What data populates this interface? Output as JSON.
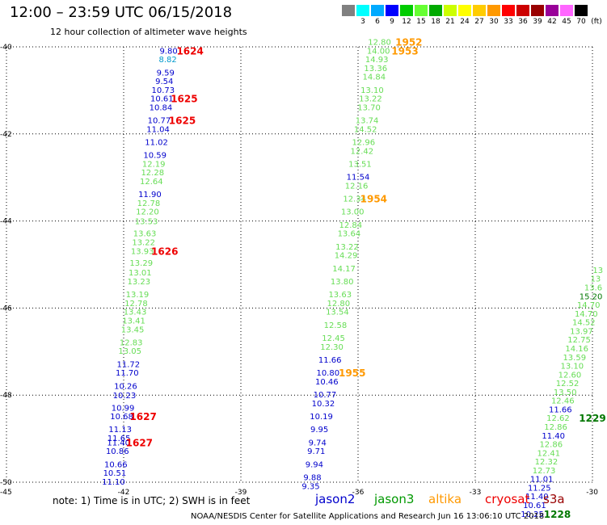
{
  "header": {
    "title": "12:00 – 23:59 UTC 06/15/2018",
    "subtitle": "12 hour collection of altimeter wave heights"
  },
  "colorbar": {
    "unit_label": "(ft)",
    "entries": [
      {
        "label": "",
        "color": "#808080"
      },
      {
        "label": "3",
        "color": "#00ffff"
      },
      {
        "label": "6",
        "color": "#00aaff"
      },
      {
        "label": "9",
        "color": "#0000ff"
      },
      {
        "label": "12",
        "color": "#00cc00"
      },
      {
        "label": "15",
        "color": "#66ff33"
      },
      {
        "label": "18",
        "color": "#00aa00"
      },
      {
        "label": "21",
        "color": "#ccff00"
      },
      {
        "label": "24",
        "color": "#ffff00"
      },
      {
        "label": "27",
        "color": "#ffcc00"
      },
      {
        "label": "30",
        "color": "#ff9900"
      },
      {
        "label": "33",
        "color": "#ff0000"
      },
      {
        "label": "36",
        "color": "#cc0000"
      },
      {
        "label": "39",
        "color": "#990000"
      },
      {
        "label": "42",
        "color": "#990099"
      },
      {
        "label": "45",
        "color": "#ff66ff"
      },
      {
        "label": "70",
        "color": "#000000"
      }
    ]
  },
  "axes": {
    "lon_ticks": [
      "-45",
      "-42",
      "-39",
      "-36",
      "-33",
      "-30"
    ],
    "lat_ticks": [
      "-40",
      "-42",
      "-44",
      "-46",
      "-48",
      "-50"
    ]
  },
  "footer": {
    "note": "note: 1) Time is in UTC; 2) SWH is in feet",
    "credit": "NOAA/NESDIS Center for Satellite Applications and Research   Jun 16 13:06:10 UTC 2018",
    "satellites": [
      {
        "name": "jason2",
        "color": "#0000cc"
      },
      {
        "name": "jason3",
        "color": "#009900"
      },
      {
        "name": "altika",
        "color": "#ff9900"
      },
      {
        "name": "cryosat",
        "color": "#ee0000"
      },
      {
        "name": "s3a",
        "color": "#990000"
      }
    ]
  },
  "colors": {
    "jason2": "#0000cc",
    "light_green": "#66dd55",
    "cyan": "#0099cc",
    "time_red": "#ee0000",
    "time_orange": "#ff9900",
    "time_green": "#007700"
  },
  "tracks": [
    {
      "name": "track-1",
      "readings": [
        {
          "value": "9.80",
          "lat": -40.08,
          "lon": -40.85,
          "c": "jason2"
        },
        {
          "value": "8.82",
          "lat": -40.28,
          "lon": -40.87,
          "c": "cyan"
        },
        {
          "value": "9.59",
          "lat": -40.58,
          "lon": -40.93,
          "c": "jason2"
        },
        {
          "value": "9.54",
          "lat": -40.78,
          "lon": -40.96,
          "c": "jason2"
        },
        {
          "value": "10.73",
          "lat": -40.98,
          "lon": -40.99,
          "c": "jason2"
        },
        {
          "value": "10.61",
          "lat": -41.18,
          "lon": -41.02,
          "c": "jason2"
        },
        {
          "value": "10.84",
          "lat": -41.38,
          "lon": -41.05,
          "c": "jason2"
        },
        {
          "value": "10.77",
          "lat": -41.68,
          "lon": -41.09,
          "c": "jason2"
        },
        {
          "value": "11.04",
          "lat": -41.88,
          "lon": -41.12,
          "c": "jason2"
        },
        {
          "value": "11.02",
          "lat": -42.18,
          "lon": -41.16,
          "c": "jason2"
        },
        {
          "value": "10.59",
          "lat": -42.48,
          "lon": -41.2,
          "c": "jason2"
        },
        {
          "value": "12.19",
          "lat": -42.68,
          "lon": -41.23,
          "c": "light_green"
        },
        {
          "value": "12.28",
          "lat": -42.88,
          "lon": -41.26,
          "c": "light_green"
        },
        {
          "value": "12.64",
          "lat": -43.08,
          "lon": -41.29,
          "c": "light_green"
        },
        {
          "value": "11.90",
          "lat": -43.38,
          "lon": -41.33,
          "c": "jason2"
        },
        {
          "value": "12.78",
          "lat": -43.58,
          "lon": -41.36,
          "c": "light_green"
        },
        {
          "value": "12.20",
          "lat": -43.78,
          "lon": -41.39,
          "c": "light_green"
        },
        {
          "value": "13.53",
          "lat": -44.0,
          "lon": -41.42,
          "c": "light_green"
        },
        {
          "value": "13.63",
          "lat": -44.28,
          "lon": -41.46,
          "c": "light_green"
        },
        {
          "value": "13.22",
          "lat": -44.48,
          "lon": -41.49,
          "c": "light_green"
        },
        {
          "value": "13.93",
          "lat": -44.68,
          "lon": -41.52,
          "c": "light_green"
        },
        {
          "value": "13.29",
          "lat": -44.95,
          "lon": -41.55,
          "c": "light_green"
        },
        {
          "value": "13.01",
          "lat": -45.18,
          "lon": -41.58,
          "c": "light_green"
        },
        {
          "value": "13.23",
          "lat": -45.38,
          "lon": -41.61,
          "c": "light_green"
        },
        {
          "value": "13.19",
          "lat": -45.68,
          "lon": -41.65,
          "c": "light_green"
        },
        {
          "value": "12.78",
          "lat": -45.88,
          "lon": -41.68,
          "c": "light_green"
        },
        {
          "value": "13.43",
          "lat": -46.08,
          "lon": -41.71,
          "c": "light_green"
        },
        {
          "value": "13.41",
          "lat": -46.28,
          "lon": -41.74,
          "c": "light_green"
        },
        {
          "value": "13.45",
          "lat": -46.48,
          "lon": -41.77,
          "c": "light_green"
        },
        {
          "value": "12.83",
          "lat": -46.78,
          "lon": -41.81,
          "c": "light_green"
        },
        {
          "value": "13.05",
          "lat": -46.98,
          "lon": -41.84,
          "c": "light_green"
        },
        {
          "value": "11.72",
          "lat": -47.28,
          "lon": -41.88,
          "c": "jason2"
        },
        {
          "value": "11.70",
          "lat": -47.48,
          "lon": -41.91,
          "c": "jason2"
        },
        {
          "value": "10.26",
          "lat": -47.78,
          "lon": -41.95,
          "c": "jason2"
        },
        {
          "value": "10.23",
          "lat": -48.0,
          "lon": -41.98,
          "c": "jason2"
        },
        {
          "value": "10.99",
          "lat": -48.28,
          "lon": -42.02,
          "c": "jason2"
        },
        {
          "value": "10.68",
          "lat": -48.48,
          "lon": -42.05,
          "c": "jason2"
        },
        {
          "value": "11.13",
          "lat": -48.78,
          "lon": -42.09,
          "c": "jason2"
        },
        {
          "value": "11.65",
          "lat": -48.98,
          "lon": -42.12,
          "c": "jason2"
        },
        {
          "value": "11.40",
          "lat": -49.08,
          "lon": -42.13,
          "c": "jason2"
        },
        {
          "value": "10.86",
          "lat": -49.28,
          "lon": -42.16,
          "c": "jason2"
        },
        {
          "value": "10.66",
          "lat": -49.58,
          "lon": -42.2,
          "c": "jason2"
        },
        {
          "value": "10.51",
          "lat": -49.78,
          "lon": -42.23,
          "c": "jason2"
        },
        {
          "value": "11.10",
          "lat": -49.98,
          "lon": -42.26,
          "c": "jason2"
        }
      ]
    },
    {
      "name": "track-2",
      "readings": [
        {
          "value": "12.80",
          "lat": -39.88,
          "lon": -35.45,
          "c": "light_green"
        },
        {
          "value": "14.00",
          "lat": -40.08,
          "lon": -35.48,
          "c": "light_green"
        },
        {
          "value": "14.93",
          "lat": -40.28,
          "lon": -35.52,
          "c": "light_green"
        },
        {
          "value": "13.36",
          "lat": -40.48,
          "lon": -35.55,
          "c": "light_green"
        },
        {
          "value": "14.84",
          "lat": -40.68,
          "lon": -35.59,
          "c": "light_green"
        },
        {
          "value": "13.10",
          "lat": -40.98,
          "lon": -35.64,
          "c": "light_green"
        },
        {
          "value": "13.22",
          "lat": -41.18,
          "lon": -35.68,
          "c": "light_green"
        },
        {
          "value": "13.70",
          "lat": -41.38,
          "lon": -35.72,
          "c": "light_green"
        },
        {
          "value": "13.74",
          "lat": -41.68,
          "lon": -35.77,
          "c": "light_green"
        },
        {
          "value": "14.52",
          "lat": -41.88,
          "lon": -35.81,
          "c": "light_green"
        },
        {
          "value": "12.96",
          "lat": -42.18,
          "lon": -35.86,
          "c": "light_green"
        },
        {
          "value": "12.42",
          "lat": -42.38,
          "lon": -35.9,
          "c": "light_green"
        },
        {
          "value": "13.51",
          "lat": -42.68,
          "lon": -35.95,
          "c": "light_green"
        },
        {
          "value": "11.54",
          "lat": -42.98,
          "lon": -36.0,
          "c": "jason2"
        },
        {
          "value": "12.16",
          "lat": -43.18,
          "lon": -36.04,
          "c": "light_green"
        },
        {
          "value": "12.34",
          "lat": -43.48,
          "lon": -36.09,
          "c": "light_green"
        },
        {
          "value": "13.00",
          "lat": -43.78,
          "lon": -36.14,
          "c": "light_green"
        },
        {
          "value": "12.84",
          "lat": -44.08,
          "lon": -36.19,
          "c": "light_green"
        },
        {
          "value": "13.64",
          "lat": -44.28,
          "lon": -36.23,
          "c": "light_green"
        },
        {
          "value": "13.22",
          "lat": -44.58,
          "lon": -36.28,
          "c": "light_green"
        },
        {
          "value": "14.29",
          "lat": -44.78,
          "lon": -36.31,
          "c": "light_green"
        },
        {
          "value": "14.17",
          "lat": -45.08,
          "lon": -36.36,
          "c": "light_green"
        },
        {
          "value": "13.80",
          "lat": -45.38,
          "lon": -36.41,
          "c": "light_green"
        },
        {
          "value": "13.63",
          "lat": -45.68,
          "lon": -36.46,
          "c": "light_green"
        },
        {
          "value": "12.80",
          "lat": -45.88,
          "lon": -36.5,
          "c": "light_green"
        },
        {
          "value": "13.54",
          "lat": -46.08,
          "lon": -36.53,
          "c": "light_green"
        },
        {
          "value": "12.58",
          "lat": -46.38,
          "lon": -36.58,
          "c": "light_green"
        },
        {
          "value": "12.45",
          "lat": -46.68,
          "lon": -36.63,
          "c": "light_green"
        },
        {
          "value": "12.30",
          "lat": -46.88,
          "lon": -36.67,
          "c": "light_green"
        },
        {
          "value": "11.66",
          "lat": -47.18,
          "lon": -36.72,
          "c": "jason2"
        },
        {
          "value": "10.80",
          "lat": -47.48,
          "lon": -36.77,
          "c": "jason2"
        },
        {
          "value": "10.46",
          "lat": -47.68,
          "lon": -36.8,
          "c": "jason2"
        },
        {
          "value": "10.77",
          "lat": -47.98,
          "lon": -36.85,
          "c": "jason2"
        },
        {
          "value": "10.32",
          "lat": -48.18,
          "lon": -36.89,
          "c": "jason2"
        },
        {
          "value": "10.19",
          "lat": -48.48,
          "lon": -36.94,
          "c": "jason2"
        },
        {
          "value": "9.95",
          "lat": -48.78,
          "lon": -36.99,
          "c": "jason2"
        },
        {
          "value": "9.74",
          "lat": -49.08,
          "lon": -37.04,
          "c": "jason2"
        },
        {
          "value": "9.71",
          "lat": -49.28,
          "lon": -37.07,
          "c": "jason2"
        },
        {
          "value": "9.94",
          "lat": -49.58,
          "lon": -37.12,
          "c": "jason2"
        },
        {
          "value": "9.88",
          "lat": -49.88,
          "lon": -37.17,
          "c": "jason2"
        },
        {
          "value": "9.35",
          "lat": -50.08,
          "lon": -37.21,
          "c": "jason2"
        }
      ]
    },
    {
      "name": "track-3",
      "readings": [
        {
          "value": "13",
          "lat": -45.12,
          "lon": -29.86,
          "c": "light_green"
        },
        {
          "value": "13",
          "lat": -45.32,
          "lon": -29.92,
          "c": "light_green"
        },
        {
          "value": "13.6",
          "lat": -45.52,
          "lon": -29.98,
          "c": "light_green"
        },
        {
          "value": "15.20",
          "lat": -45.72,
          "lon": -30.04,
          "c": "time_green"
        },
        {
          "value": "14.70",
          "lat": -45.92,
          "lon": -30.1,
          "c": "light_green"
        },
        {
          "value": "14.70",
          "lat": -46.12,
          "lon": -30.16,
          "c": "light_green"
        },
        {
          "value": "14.52",
          "lat": -46.32,
          "lon": -30.22,
          "c": "light_green"
        },
        {
          "value": "13.97",
          "lat": -46.52,
          "lon": -30.28,
          "c": "light_green"
        },
        {
          "value": "12.75",
          "lat": -46.72,
          "lon": -30.34,
          "c": "light_green"
        },
        {
          "value": "14.16",
          "lat": -46.92,
          "lon": -30.4,
          "c": "light_green"
        },
        {
          "value": "13.59",
          "lat": -47.12,
          "lon": -30.46,
          "c": "light_green"
        },
        {
          "value": "13.10",
          "lat": -47.32,
          "lon": -30.52,
          "c": "light_green"
        },
        {
          "value": "12.60",
          "lat": -47.52,
          "lon": -30.58,
          "c": "light_green"
        },
        {
          "value": "12.52",
          "lat": -47.72,
          "lon": -30.64,
          "c": "light_green"
        },
        {
          "value": "13.50",
          "lat": -47.92,
          "lon": -30.7,
          "c": "light_green"
        },
        {
          "value": "12.46",
          "lat": -48.12,
          "lon": -30.76,
          "c": "light_green"
        },
        {
          "value": "11.66",
          "lat": -48.32,
          "lon": -30.82,
          "c": "jason2"
        },
        {
          "value": "12.62",
          "lat": -48.52,
          "lon": -30.88,
          "c": "light_green"
        },
        {
          "value": "12.86",
          "lat": -48.72,
          "lon": -30.94,
          "c": "light_green"
        },
        {
          "value": "11.40",
          "lat": -48.92,
          "lon": -31.0,
          "c": "jason2"
        },
        {
          "value": "12.86",
          "lat": -49.12,
          "lon": -31.06,
          "c": "light_green"
        },
        {
          "value": "12.41",
          "lat": -49.32,
          "lon": -31.12,
          "c": "light_green"
        },
        {
          "value": "12.32",
          "lat": -49.52,
          "lon": -31.18,
          "c": "light_green"
        },
        {
          "value": "12.73",
          "lat": -49.72,
          "lon": -31.24,
          "c": "light_green"
        },
        {
          "value": "11.01",
          "lat": -49.92,
          "lon": -31.3,
          "c": "jason2"
        },
        {
          "value": "11.25",
          "lat": -50.12,
          "lon": -31.36,
          "c": "jason2"
        },
        {
          "value": "11.40",
          "lat": -50.32,
          "lon": -31.42,
          "c": "jason2"
        },
        {
          "value": "10.61",
          "lat": -50.52,
          "lon": -31.48,
          "c": "jason2"
        },
        {
          "value": "10.25",
          "lat": -50.72,
          "lon": -31.54,
          "c": "jason2"
        }
      ]
    }
  ],
  "time_stamps": [
    {
      "value": "1624",
      "lat": -40.08,
      "lon": -40.3,
      "c": "time_red"
    },
    {
      "value": "1625",
      "lat": -41.18,
      "lon": -40.45,
      "c": "time_red"
    },
    {
      "value": "1625",
      "lat": -41.68,
      "lon": -40.5,
      "c": "time_red"
    },
    {
      "value": "1626",
      "lat": -44.68,
      "lon": -40.95,
      "c": "time_red"
    },
    {
      "value": "1627",
      "lat": -48.48,
      "lon": -41.5,
      "c": "time_red"
    },
    {
      "value": "1627",
      "lat": -49.08,
      "lon": -41.6,
      "c": "time_red"
    },
    {
      "value": "1952",
      "lat": -39.88,
      "lon": -34.7,
      "c": "time_orange"
    },
    {
      "value": "1953",
      "lat": -40.08,
      "lon": -34.8,
      "c": "time_orange"
    },
    {
      "value": "1954",
      "lat": -43.48,
      "lon": -35.6,
      "c": "time_orange"
    },
    {
      "value": "1955",
      "lat": -47.48,
      "lon": -36.15,
      "c": "time_orange"
    },
    {
      "value": "1229",
      "lat": -48.52,
      "lon": -30.0,
      "c": "time_green"
    },
    {
      "value": "1228",
      "lat": -50.72,
      "lon": -30.9,
      "c": "time_green"
    }
  ]
}
